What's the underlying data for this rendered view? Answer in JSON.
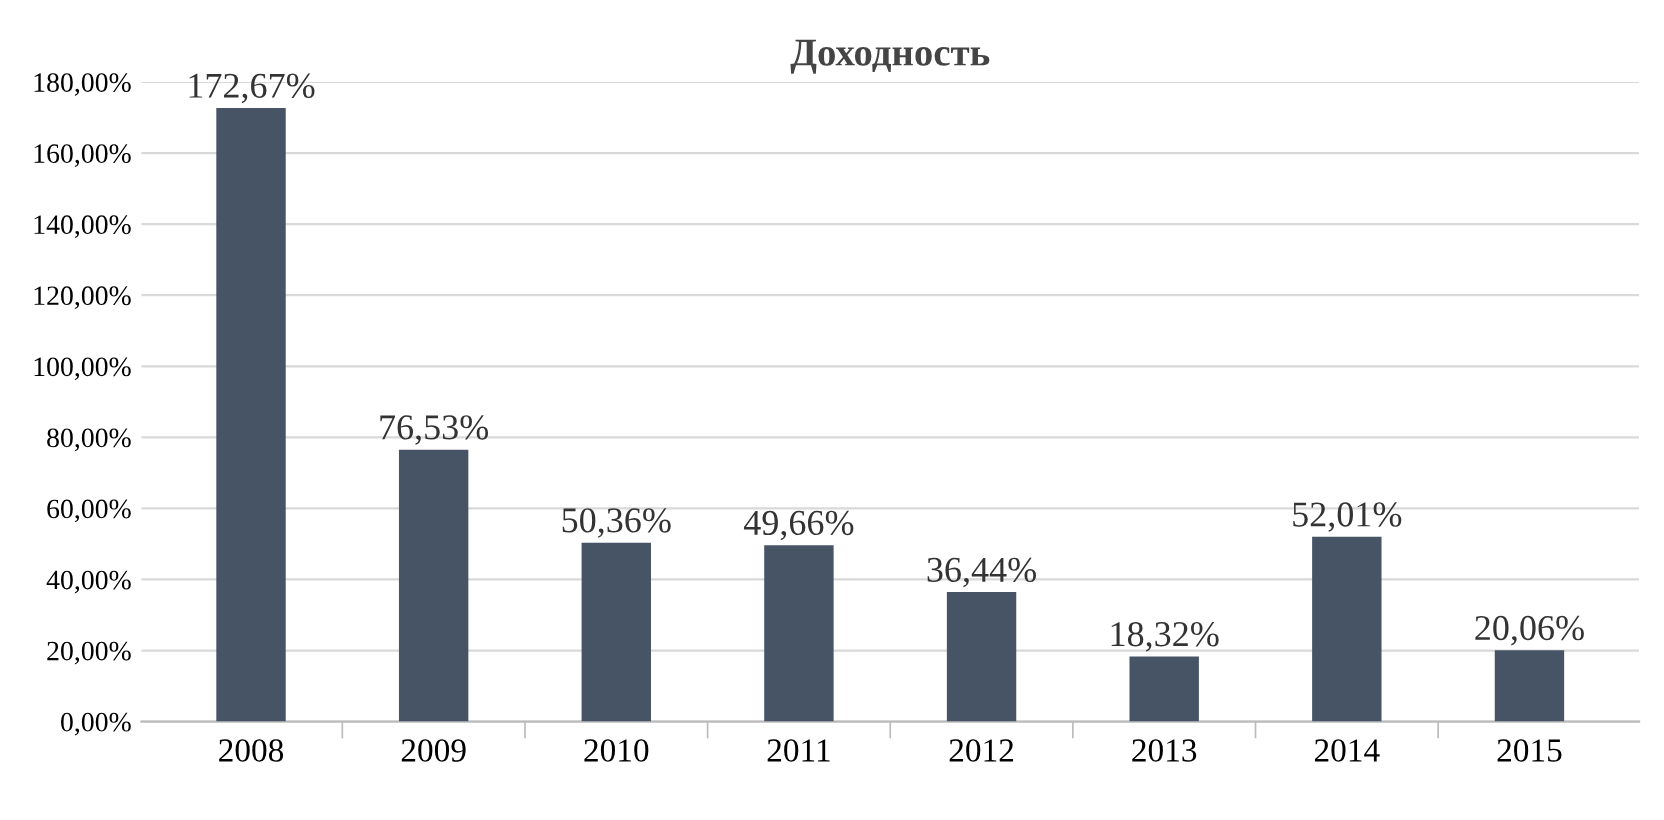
{
  "chart_data": {
    "type": "bar",
    "title": "Доходность",
    "categories": [
      "2008",
      "2009",
      "2010",
      "2011",
      "2012",
      "2013",
      "2014",
      "2015"
    ],
    "values": [
      172.67,
      76.53,
      50.36,
      49.66,
      36.44,
      18.32,
      52.01,
      20.06
    ],
    "value_labels": [
      "172,67%",
      "76,53%",
      "50,36%",
      "49,66%",
      "36,44%",
      "18,32%",
      "52,01%",
      "20,06%"
    ],
    "color": "#465465",
    "ylim": [
      0,
      180
    ],
    "yticks": [
      {
        "value": 0,
        "label": "0,00%"
      },
      {
        "value": 20,
        "label": "20,00%"
      },
      {
        "value": 40,
        "label": "40,00%"
      },
      {
        "value": 60,
        "label": "60,00%"
      },
      {
        "value": 80,
        "label": "80,00%"
      },
      {
        "value": 100,
        "label": "100,00%"
      },
      {
        "value": 120,
        "label": "120,00%"
      },
      {
        "value": 140,
        "label": "140,00%"
      },
      {
        "value": 160,
        "label": "160,00%"
      },
      {
        "value": 180,
        "label": "180,00%"
      }
    ],
    "grid": "y",
    "legend": false
  }
}
